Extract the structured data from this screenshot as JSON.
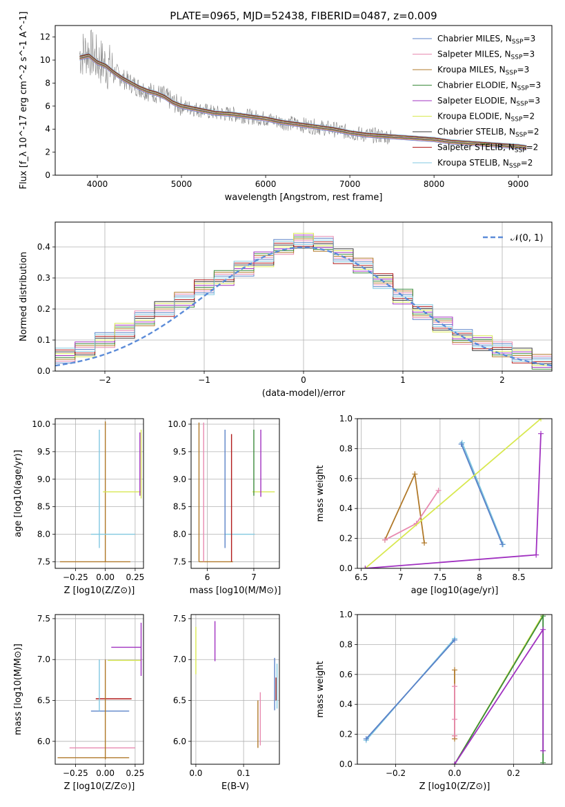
{
  "figure_title": "PLATE=0965, MJD=52438, FIBERID=0487, z=0.009",
  "colors": {
    "spectrum": "#808080",
    "normal_curve": "#5b8bd8",
    "grid": "#b0b0b0"
  },
  "models": [
    {
      "name": "Chabrier MILES",
      "nssp": "3",
      "color": "#5a82c8"
    },
    {
      "name": "Salpeter MILES",
      "nssp": "3",
      "color": "#e88ab0"
    },
    {
      "name": "Kroupa MILES",
      "nssp": "3",
      "color": "#b07828"
    },
    {
      "name": "Chabrier ELODIE",
      "nssp": "3",
      "color": "#3a8a3a"
    },
    {
      "name": "Salpeter ELODIE",
      "nssp": "3",
      "color": "#a030c0"
    },
    {
      "name": "Kroupa ELODIE",
      "nssp": "2",
      "color": "#d8e850"
    },
    {
      "name": "Chabrier STELIB",
      "nssp": "2",
      "color": "#383838"
    },
    {
      "name": "Salpeter STELIB",
      "nssp": "2",
      "color": "#b01818"
    },
    {
      "name": "Kroupa STELIB",
      "nssp": "2",
      "color": "#80c8e0"
    }
  ],
  "chart_data": [
    {
      "id": "spectrum",
      "type": "line",
      "xlabel": "wavelength [Angstrom, rest frame]",
      "ylabel": "Flux [f_λ 10^-17 erg cm^-2 s^-1 A^-1]",
      "xlim": [
        3500,
        9400
      ],
      "ylim": [
        0,
        13
      ],
      "xticks": [
        4000,
        5000,
        6000,
        7000,
        8000,
        9000
      ],
      "yticks": [
        0,
        2,
        4,
        6,
        8,
        10,
        12
      ],
      "grid": false,
      "legend": "top-right",
      "data_x": [
        3790,
        3900,
        4000,
        4100,
        4200,
        4300,
        4400,
        4500,
        4600,
        4700,
        4800,
        4900,
        5000,
        5200,
        5400,
        5600,
        5800,
        6000,
        6200,
        6400,
        6600,
        6800,
        7000,
        7200,
        7400,
        7600,
        7800,
        8000,
        8200,
        8400,
        8600,
        8800,
        9000,
        9100
      ],
      "data_y": [
        10.5,
        10.8,
        10.0,
        9.6,
        9.0,
        8.4,
        8.0,
        7.6,
        7.3,
        7.1,
        6.9,
        6.3,
        6.0,
        5.7,
        5.4,
        5.3,
        5.1,
        4.9,
        4.6,
        4.4,
        4.2,
        4.0,
        3.7,
        3.5,
        3.4,
        3.3,
        3.2,
        3.1,
        2.9,
        2.8,
        2.7,
        2.6,
        2.5,
        2.4
      ],
      "model_y": [
        10.2,
        10.4,
        9.8,
        9.5,
        8.9,
        8.4,
        8.0,
        7.6,
        7.3,
        7.1,
        6.8,
        6.3,
        6.0,
        5.7,
        5.4,
        5.3,
        5.1,
        4.9,
        4.6,
        4.4,
        4.2,
        4.0,
        3.7,
        3.5,
        3.4,
        3.3,
        3.2,
        3.1,
        2.9,
        2.8,
        2.7,
        2.6,
        2.5,
        2.4
      ]
    },
    {
      "id": "residuals",
      "type": "line",
      "xlabel": "(data-model)/error",
      "ylabel": "Normed distribution",
      "xlim": [
        -2.5,
        2.5
      ],
      "ylim": [
        0,
        0.48
      ],
      "xticks": [
        -2,
        -1,
        0,
        1,
        2
      ],
      "yticks": [
        0.0,
        0.1,
        0.2,
        0.3,
        0.4
      ],
      "grid": true,
      "legend": "top-right",
      "legend_label": "𝒩(0, 1)",
      "bin_edges": [
        -2.5,
        -2.3,
        -2.1,
        -1.9,
        -1.7,
        -1.5,
        -1.3,
        -1.1,
        -0.9,
        -0.7,
        -0.5,
        -0.3,
        -0.1,
        0.1,
        0.3,
        0.5,
        0.7,
        0.9,
        1.1,
        1.3,
        1.5,
        1.7,
        1.9,
        2.1,
        2.3,
        2.5
      ],
      "bin_values": [
        0.05,
        0.07,
        0.1,
        0.13,
        0.17,
        0.2,
        0.23,
        0.27,
        0.3,
        0.33,
        0.36,
        0.4,
        0.42,
        0.41,
        0.37,
        0.34,
        0.29,
        0.24,
        0.19,
        0.15,
        0.11,
        0.09,
        0.07,
        0.05,
        0.03
      ]
    },
    {
      "id": "age-vs-Z",
      "type": "scatter",
      "xlabel": "Z [log10(Z/Z⊙)]",
      "ylabel": "age  [log10(age/yr)]",
      "xlim": [
        -0.42,
        0.32
      ],
      "ylim": [
        7.38,
        10.1
      ],
      "xticks": [
        -0.25,
        0.0,
        0.25
      ],
      "xtick_labels": [
        "−0.25",
        "0.00",
        "0.25"
      ],
      "yticks": [
        7.5,
        8.0,
        8.5,
        9.0,
        9.5,
        10.0
      ],
      "grid": true,
      "segments": [
        {
          "x": [
            -0.38,
            0.21
          ],
          "y": [
            7.5,
            7.5
          ],
          "model": 2
        },
        {
          "x": [
            0.0,
            0.0
          ],
          "y": [
            7.5,
            10.05
          ],
          "model": 2
        },
        {
          "x": [
            -0.12,
            0.25
          ],
          "y": [
            8.0,
            8.0
          ],
          "model": 8
        },
        {
          "x": [
            -0.05,
            -0.05
          ],
          "y": [
            7.75,
            9.9
          ],
          "model": 8
        },
        {
          "x": [
            -0.02,
            0.3
          ],
          "y": [
            8.77,
            8.77
          ],
          "model": 5
        },
        {
          "x": [
            0.3,
            0.3
          ],
          "y": [
            8.65,
            9.9
          ],
          "model": 5
        },
        {
          "x": [
            0.29,
            0.29
          ],
          "y": [
            8.7,
            9.85
          ],
          "model": 4
        }
      ]
    },
    {
      "id": "age-vs-mass",
      "type": "scatter",
      "xlabel": "mass [log10(M/M⊙)]",
      "ylabel": "",
      "xlim": [
        5.65,
        7.55
      ],
      "ylim": [
        7.38,
        10.1
      ],
      "xticks": [
        6,
        7
      ],
      "yticks": [
        7.5,
        8.0,
        8.5,
        9.0,
        9.5,
        10.0
      ],
      "grid": true,
      "segments": [
        {
          "x": [
            5.82,
            6.55
          ],
          "y": [
            7.5,
            7.5
          ],
          "model": 2
        },
        {
          "x": [
            5.82,
            5.82
          ],
          "y": [
            7.5,
            10.03
          ],
          "model": 2
        },
        {
          "x": [
            5.92,
            5.92
          ],
          "y": [
            7.5,
            10.03
          ],
          "model": 1
        },
        {
          "x": [
            6.38,
            7.02
          ],
          "y": [
            8.0,
            8.0
          ],
          "model": 8
        },
        {
          "x": [
            6.38,
            6.38
          ],
          "y": [
            7.75,
            9.9
          ],
          "model": 0
        },
        {
          "x": [
            6.52,
            6.52
          ],
          "y": [
            7.5,
            9.82
          ],
          "model": 7
        },
        {
          "x": [
            6.97,
            7.45
          ],
          "y": [
            8.77,
            8.77
          ],
          "model": 5
        },
        {
          "x": [
            7.0,
            7.0
          ],
          "y": [
            8.7,
            9.9
          ],
          "model": 3
        },
        {
          "x": [
            7.15,
            7.15
          ],
          "y": [
            8.68,
            9.9
          ],
          "model": 4
        }
      ]
    },
    {
      "id": "weight-vs-age",
      "type": "line",
      "xlabel": "age  [log10(age/yr)]",
      "ylabel": "mass weight",
      "xlim": [
        6.45,
        8.92
      ],
      "ylim": [
        0,
        1.0
      ],
      "xticks": [
        6.5,
        7.0,
        7.5,
        8.0,
        8.5
      ],
      "yticks": [
        0.0,
        0.2,
        0.4,
        0.6,
        0.8,
        1.0
      ],
      "grid": true,
      "series": [
        {
          "model": 2,
          "x": [
            6.8,
            7.18,
            7.3
          ],
          "y": [
            0.19,
            0.63,
            0.17
          ]
        },
        {
          "model": 1,
          "x": [
            6.8,
            7.2,
            7.48
          ],
          "y": [
            0.19,
            0.3,
            0.52
          ]
        },
        {
          "model": 8,
          "x": [
            7.78,
            8.3
          ],
          "y": [
            0.84,
            0.16
          ]
        },
        {
          "model": 0,
          "x": [
            7.77,
            8.29
          ],
          "y": [
            0.83,
            0.16
          ]
        },
        {
          "model": 5,
          "x": [
            6.55,
            8.78
          ],
          "y": [
            0.0,
            1.0
          ]
        },
        {
          "model": 4,
          "x": [
            6.55,
            8.72,
            8.78
          ],
          "y": [
            0.0,
            0.09,
            0.9
          ]
        }
      ]
    },
    {
      "id": "mass-vs-Z",
      "type": "scatter",
      "xlabel": "Z [log10(Z/Z⊙)]",
      "ylabel": "mass [log10(M/M⊙)]",
      "xlim": [
        -0.42,
        0.32
      ],
      "ylim": [
        5.72,
        7.55
      ],
      "xticks": [
        -0.25,
        0.0,
        0.25
      ],
      "xtick_labels": [
        "−0.25",
        "0.00",
        "0.25"
      ],
      "yticks": [
        6.0,
        6.5,
        7.0,
        7.5
      ],
      "grid": true,
      "segments": [
        {
          "x": [
            -0.4,
            0.2
          ],
          "y": [
            5.8,
            5.8
          ],
          "model": 2
        },
        {
          "x": [
            -0.3,
            0.25
          ],
          "y": [
            5.92,
            5.92
          ],
          "model": 1
        },
        {
          "x": [
            -0.12,
            0.2
          ],
          "y": [
            6.37,
            6.37
          ],
          "model": 0
        },
        {
          "x": [
            -0.08,
            0.22
          ],
          "y": [
            6.52,
            6.52
          ],
          "model": 7
        },
        {
          "x": [
            0.0,
            0.0
          ],
          "y": [
            5.78,
            7.0
          ],
          "model": 2
        },
        {
          "x": [
            -0.05,
            -0.05
          ],
          "y": [
            6.37,
            7.0
          ],
          "model": 8
        },
        {
          "x": [
            0.02,
            0.3
          ],
          "y": [
            6.99,
            6.99
          ],
          "model": 5
        },
        {
          "x": [
            0.05,
            0.3
          ],
          "y": [
            7.15,
            7.15
          ],
          "model": 4
        },
        {
          "x": [
            0.3,
            0.3
          ],
          "y": [
            6.8,
            7.45
          ],
          "model": 4
        }
      ]
    },
    {
      "id": "mass-vs-EBV",
      "type": "scatter",
      "xlabel": "E(B-V)",
      "ylabel": "",
      "xlim": [
        -0.01,
        0.175
      ],
      "ylim": [
        5.72,
        7.55
      ],
      "xticks": [
        0.0,
        0.1
      ],
      "xtick_labels": [
        "0.0",
        "0.1"
      ],
      "yticks": [
        6.0,
        6.5,
        7.0,
        7.5
      ],
      "grid": true,
      "segments": [
        {
          "x": [
            0.0,
            0.0
          ],
          "y": [
            6.82,
            7.4
          ],
          "model": 5
        },
        {
          "x": [
            0.04,
            0.04
          ],
          "y": [
            6.98,
            7.47
          ],
          "model": 4
        },
        {
          "x": [
            0.13,
            0.13
          ],
          "y": [
            5.92,
            6.5
          ],
          "model": 2
        },
        {
          "x": [
            0.135,
            0.135
          ],
          "y": [
            5.95,
            6.6
          ],
          "model": 1
        },
        {
          "x": [
            0.165,
            0.165
          ],
          "y": [
            6.38,
            7.02
          ],
          "model": 0
        },
        {
          "x": [
            0.168,
            0.168
          ],
          "y": [
            6.5,
            6.78
          ],
          "model": 7
        },
        {
          "x": [
            0.17,
            0.17
          ],
          "y": [
            6.4,
            6.95
          ],
          "model": 8
        }
      ]
    },
    {
      "id": "weight-vs-Z",
      "type": "line",
      "xlabel": "Z [log10(Z/Z⊙)]",
      "ylabel": "mass weight",
      "xlim": [
        -0.33,
        0.33
      ],
      "ylim": [
        0,
        1.0
      ],
      "xticks": [
        -0.2,
        0.0,
        0.2
      ],
      "xtick_labels": [
        "−0.2",
        "0.0",
        "0.2"
      ],
      "yticks": [
        0.0,
        0.2,
        0.4,
        0.6,
        0.8,
        1.0
      ],
      "grid": true,
      "series": [
        {
          "model": 8,
          "x": [
            -0.3,
            0.0
          ],
          "y": [
            0.16,
            0.84
          ]
        },
        {
          "model": 0,
          "x": [
            -0.3,
            0.0
          ],
          "y": [
            0.17,
            0.83
          ]
        },
        {
          "model": 2,
          "x": [
            0.0,
            0.0,
            0.0
          ],
          "y": [
            0.17,
            0.63,
            0.19
          ]
        },
        {
          "model": 1,
          "x": [
            0.0,
            0.0,
            0.0
          ],
          "y": [
            0.19,
            0.52,
            0.3
          ]
        },
        {
          "model": 5,
          "x": [
            0.0,
            0.3
          ],
          "y": [
            0.0,
            1.0
          ]
        },
        {
          "model": 3,
          "x": [
            0.0,
            0.3,
            0.3
          ],
          "y": [
            0.0,
            0.99,
            0.01
          ]
        },
        {
          "model": 4,
          "x": [
            0.0,
            0.3,
            0.3
          ],
          "y": [
            0.0,
            0.9,
            0.09
          ]
        }
      ]
    }
  ]
}
